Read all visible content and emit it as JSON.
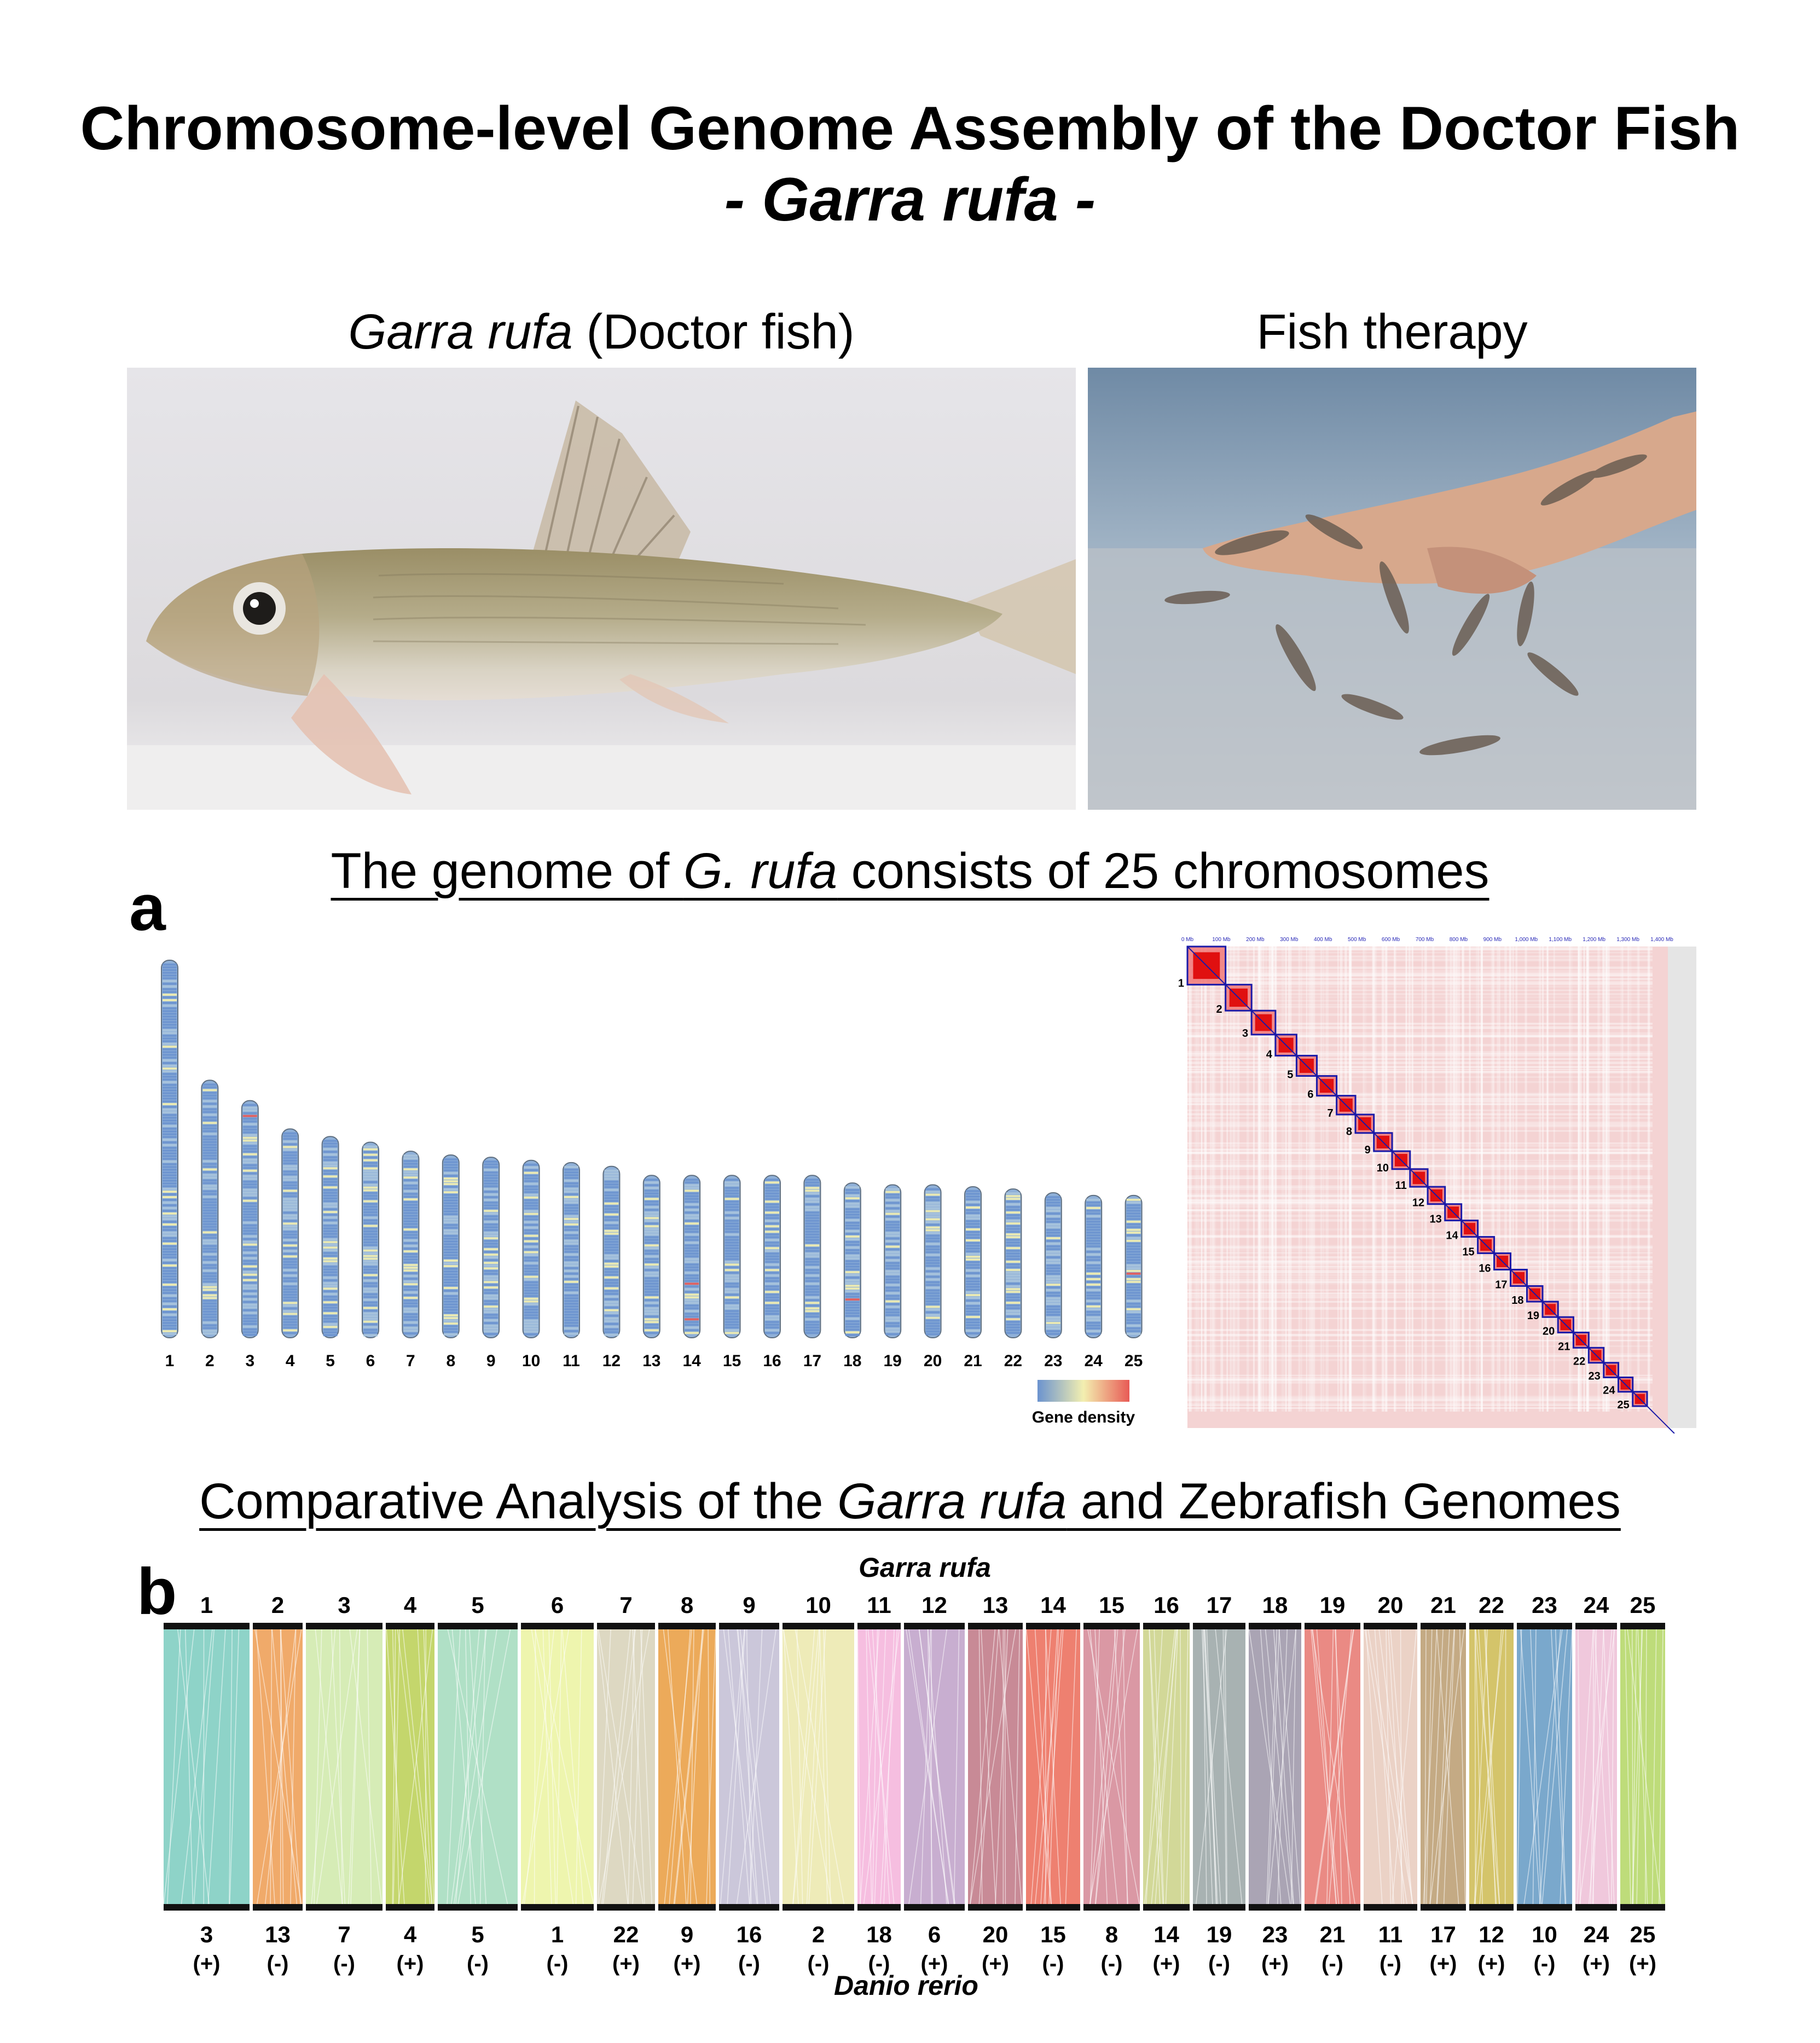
{
  "title": {
    "line1": "Chromosome-level Genome Assembly of the Doctor Fish",
    "line2": "- Garra rufa -"
  },
  "photos": {
    "left": {
      "title_italic": "Garra rufa",
      "title_rest": " (Doctor fish)"
    },
    "right": {
      "title": "Fish therapy"
    }
  },
  "panel_a": {
    "label": "a",
    "caption_pre": "The genome of ",
    "caption_italic": "G. rufa",
    "caption_post": " consists of 25 chromosomes",
    "legend_label": "Gene density",
    "chromosomes": [
      {
        "id": "1",
        "rel_length": 1.0
      },
      {
        "id": "2",
        "rel_length": 0.682
      },
      {
        "id": "3",
        "rel_length": 0.628
      },
      {
        "id": "4",
        "rel_length": 0.553
      },
      {
        "id": "5",
        "rel_length": 0.533
      },
      {
        "id": "6",
        "rel_length": 0.518
      },
      {
        "id": "7",
        "rel_length": 0.494
      },
      {
        "id": "8",
        "rel_length": 0.484
      },
      {
        "id": "9",
        "rel_length": 0.478
      },
      {
        "id": "10",
        "rel_length": 0.47
      },
      {
        "id": "11",
        "rel_length": 0.464
      },
      {
        "id": "12",
        "rel_length": 0.454
      },
      {
        "id": "13",
        "rel_length": 0.43
      },
      {
        "id": "14",
        "rel_length": 0.43
      },
      {
        "id": "15",
        "rel_length": 0.43
      },
      {
        "id": "16",
        "rel_length": 0.43
      },
      {
        "id": "17",
        "rel_length": 0.43
      },
      {
        "id": "18",
        "rel_length": 0.41
      },
      {
        "id": "19",
        "rel_length": 0.405
      },
      {
        "id": "20",
        "rel_length": 0.405
      },
      {
        "id": "21",
        "rel_length": 0.4
      },
      {
        "id": "22",
        "rel_length": 0.394
      },
      {
        "id": "23",
        "rel_length": 0.384
      },
      {
        "id": "24",
        "rel_length": 0.377
      },
      {
        "id": "25",
        "rel_length": 0.377
      }
    ],
    "hic_map": {
      "axis_ticks": [
        "0 Mb",
        "100 Mb",
        "200 Mb",
        "300 Mb",
        "400 Mb",
        "500 Mb",
        "600 Mb",
        "700 Mb",
        "800 Mb",
        "900 Mb",
        "1,000 Mb",
        "1,100 Mb",
        "1,200 Mb",
        "1,300 Mb",
        "1,400 Mb"
      ],
      "blocks": [
        "1",
        "2",
        "3",
        "4",
        "5",
        "6",
        "7",
        "8",
        "9",
        "10",
        "11",
        "12",
        "13",
        "14",
        "15",
        "16",
        "17",
        "18",
        "19",
        "20",
        "21",
        "22",
        "23",
        "24",
        "25"
      ]
    }
  },
  "panel_b": {
    "label": "b",
    "caption_pre": "Comparative Analysis of the ",
    "caption_italic": "Garra rufa",
    "caption_post": " and Zebrafish Genomes",
    "top_species": "Garra rufa",
    "bottom_species": "Danio rerio",
    "links": [
      {
        "top": "1",
        "bottom": "3",
        "strand": "(+)",
        "color": "#8ed3c8"
      },
      {
        "top": "2",
        "bottom": "13",
        "strand": "(-)",
        "color": "#f0aa6a"
      },
      {
        "top": "3",
        "bottom": "7",
        "strand": "(-)",
        "color": "#d6ecb6"
      },
      {
        "top": "4",
        "bottom": "4",
        "strand": "(+)",
        "color": "#c4d66c"
      },
      {
        "top": "5",
        "bottom": "5",
        "strand": "(-)",
        "color": "#b0e0c6"
      },
      {
        "top": "6",
        "bottom": "1",
        "strand": "(-)",
        "color": "#eef5ae"
      },
      {
        "top": "7",
        "bottom": "22",
        "strand": "(+)",
        "color": "#ddd8c2"
      },
      {
        "top": "8",
        "bottom": "9",
        "strand": "(+)",
        "color": "#ecaa5a"
      },
      {
        "top": "9",
        "bottom": "16",
        "strand": "(-)",
        "color": "#cbc7da"
      },
      {
        "top": "10",
        "bottom": "2",
        "strand": "(-)",
        "color": "#eeebb8"
      },
      {
        "top": "11",
        "bottom": "18",
        "strand": "(-)",
        "color": "#f6bee0"
      },
      {
        "top": "12",
        "bottom": "6",
        "strand": "(+)",
        "color": "#c8aed0"
      },
      {
        "top": "13",
        "bottom": "20",
        "strand": "(+)",
        "color": "#c88a96"
      },
      {
        "top": "14",
        "bottom": "15",
        "strand": "(-)",
        "color": "#ee8070"
      },
      {
        "top": "15",
        "bottom": "8",
        "strand": "(-)",
        "color": "#da98a4"
      },
      {
        "top": "16",
        "bottom": "14",
        "strand": "(+)",
        "color": "#d2d898"
      },
      {
        "top": "17",
        "bottom": "19",
        "strand": "(-)",
        "color": "#a8b2b2"
      },
      {
        "top": "18",
        "bottom": "23",
        "strand": "(+)",
        "color": "#aaa4b4"
      },
      {
        "top": "19",
        "bottom": "21",
        "strand": "(-)",
        "color": "#ea8a84"
      },
      {
        "top": "20",
        "bottom": "11",
        "strand": "(-)",
        "color": "#ebd2c6"
      },
      {
        "top": "21",
        "bottom": "17",
        "strand": "(+)",
        "color": "#c4aa84"
      },
      {
        "top": "22",
        "bottom": "12",
        "strand": "(+)",
        "color": "#d4c46a"
      },
      {
        "top": "23",
        "bottom": "10",
        "strand": "(-)",
        "color": "#7aa8cc"
      },
      {
        "top": "24",
        "bottom": "24",
        "strand": "(+)",
        "color": "#f0c8dc"
      },
      {
        "top": "25",
        "bottom": "25",
        "strand": "(+)",
        "color": "#bedc7a"
      }
    ]
  },
  "colors": {
    "density_low": "#6b93cf",
    "density_mid": "#f3efb0",
    "density_high": "#e85a55",
    "hic_red": "#e01010",
    "hic_frame": "#1a1aa8"
  }
}
